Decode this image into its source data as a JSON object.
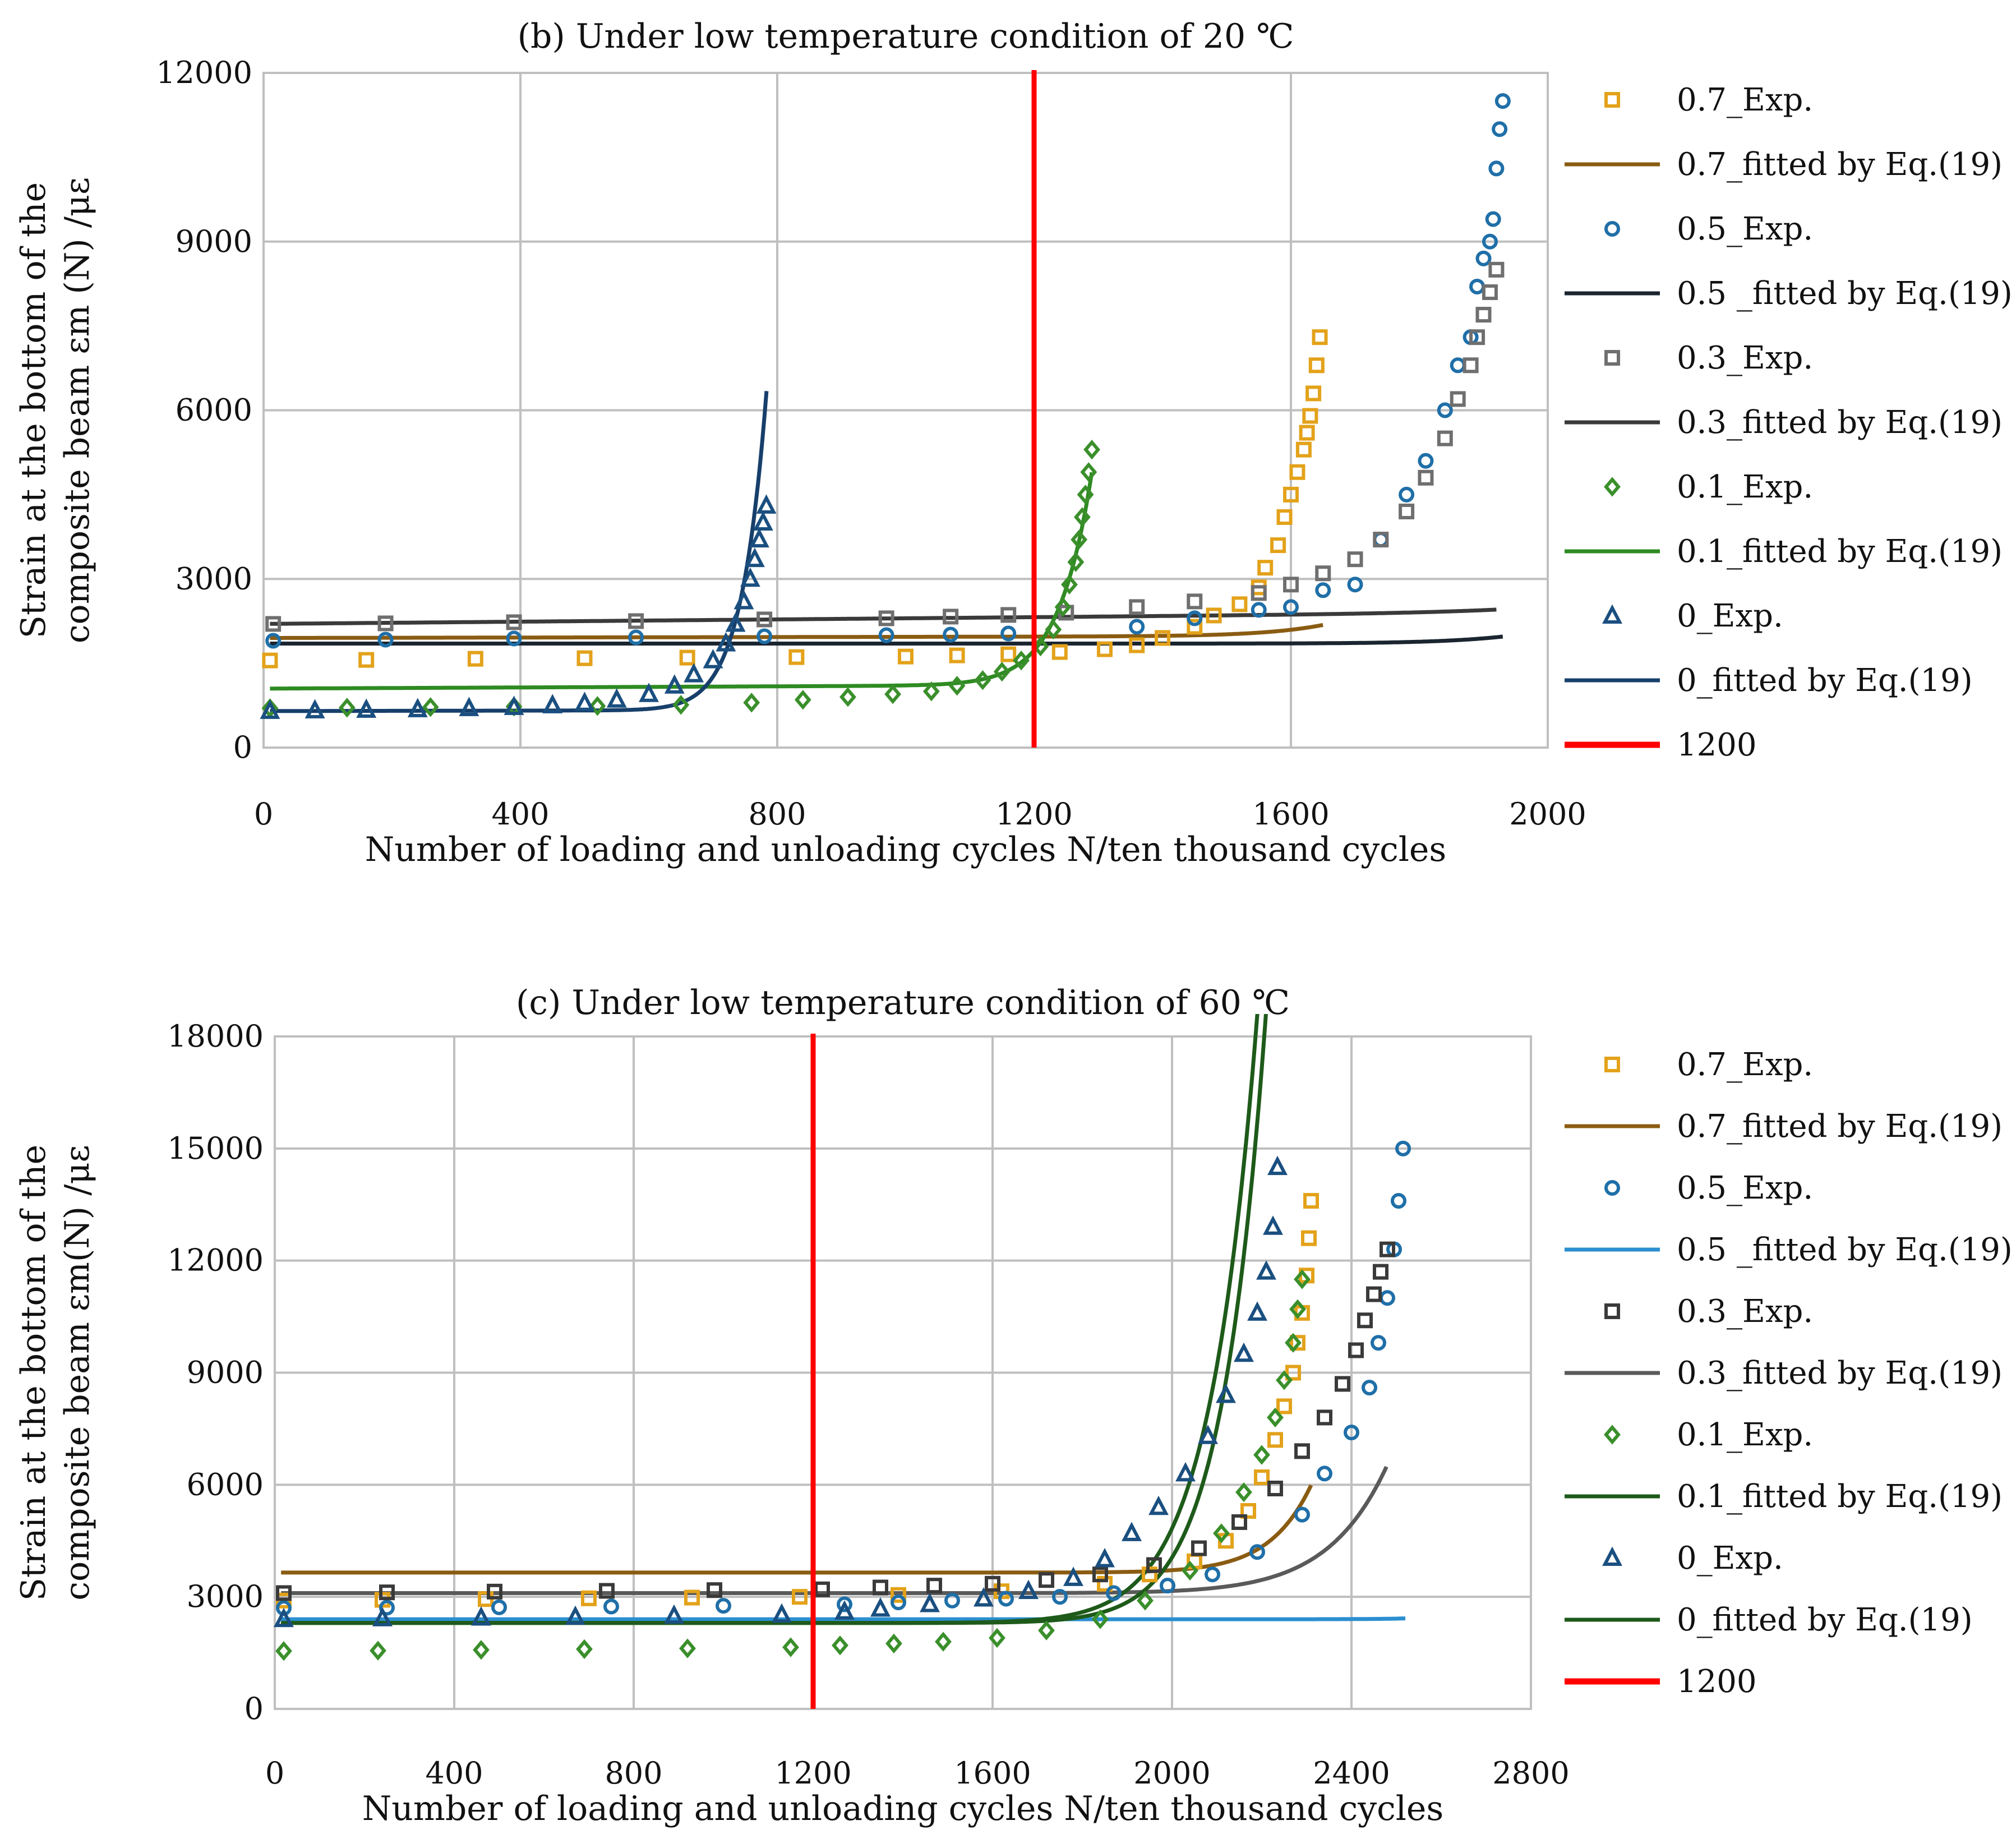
{
  "chart_data": [
    {
      "type": "scatter",
      "title": "(b) Under low temperature condition of 20 ℃",
      "xlabel": "Number of loading and unloading cycles N/ten thousand cycles",
      "ylabel_line1": "Strain at the bottom of the",
      "ylabel_line2": "composite beam εm (N) /με",
      "xlim": [
        0,
        2000
      ],
      "ylim": [
        0,
        12000
      ],
      "x_ticks": [
        "0",
        "400",
        "800",
        "1200",
        "1600",
        "2000"
      ],
      "y_ticks": [
        "0",
        "3000",
        "6000",
        "9000",
        "12000"
      ],
      "vline": {
        "x": 1200,
        "label": "1200",
        "color": "#ff0000"
      },
      "series": [
        {
          "name": "0.7_Exp.",
          "kind": "points",
          "marker": "square",
          "color": "#e3a21a",
          "x": [
            10,
            160,
            330,
            500,
            660,
            830,
            1000,
            1080,
            1160,
            1240,
            1310,
            1360,
            1400,
            1450,
            1480,
            1520,
            1550,
            1560,
            1580,
            1590,
            1600,
            1610,
            1620,
            1625,
            1630,
            1635,
            1640,
            1645
          ],
          "y": [
            1550,
            1560,
            1580,
            1590,
            1600,
            1610,
            1620,
            1640,
            1660,
            1700,
            1750,
            1820,
            1950,
            2150,
            2350,
            2550,
            2850,
            3200,
            3600,
            4100,
            4500,
            4900,
            5300,
            5600,
            5900,
            6300,
            6800,
            7300
          ]
        },
        {
          "name": "0.7_fitted by Eq.(19)",
          "kind": "line",
          "color": "#8a5c12",
          "fit": {
            "a": 1950,
            "b": 0.02,
            "c": 5.5e-57,
            "p": 18.2
          },
          "xmax": 1650
        },
        {
          "name": "0.5_Exp.",
          "kind": "points",
          "marker": "circle",
          "color": "#1f6fa8",
          "x": [
            15,
            190,
            390,
            580,
            780,
            970,
            1070,
            1160,
            1360,
            1450,
            1550,
            1600,
            1650,
            1700,
            1740,
            1780,
            1810,
            1840,
            1860,
            1880,
            1890,
            1900,
            1910,
            1915,
            1920,
            1925,
            1930
          ],
          "y": [
            1900,
            1920,
            1940,
            1960,
            1980,
            2000,
            2010,
            2030,
            2150,
            2300,
            2450,
            2500,
            2800,
            2900,
            3700,
            4500,
            5100,
            6000,
            6800,
            7300,
            8200,
            8700,
            9000,
            9400,
            10300,
            11000,
            11500
          ]
        },
        {
          "name": "0.5 _fitted by Eq.(19)",
          "kind": "line",
          "color": "#1a2530",
          "fit": {
            "a": 1850,
            "b": 0.0,
            "c": 1e-60,
            "p": 18.9
          },
          "xmax": 1930
        },
        {
          "name": "0.3_Exp.",
          "kind": "points",
          "marker": "square",
          "color": "#6f6f6f",
          "x": [
            15,
            190,
            390,
            580,
            780,
            970,
            1070,
            1160,
            1250,
            1360,
            1450,
            1550,
            1600,
            1650,
            1700,
            1740,
            1780,
            1810,
            1840,
            1860,
            1880,
            1890,
            1900,
            1910,
            1920
          ],
          "y": [
            2200,
            2210,
            2230,
            2250,
            2280,
            2300,
            2330,
            2360,
            2400,
            2500,
            2600,
            2750,
            2900,
            3100,
            3350,
            3700,
            4200,
            4800,
            5500,
            6200,
            6800,
            7300,
            7700,
            8100,
            8500
          ]
        },
        {
          "name": "0.3_fitted by Eq.(19)",
          "kind": "line",
          "color": "#3a3a3a",
          "fit": {
            "a": 2200,
            "b": 0.1,
            "c": 1.3e-41,
            "p": 13.0
          },
          "xmax": 1920
        },
        {
          "name": "0.1_Exp.",
          "kind": "points",
          "marker": "diamond",
          "color": "#3a8f2b",
          "x": [
            10,
            130,
            260,
            390,
            520,
            650,
            760,
            840,
            910,
            980,
            1040,
            1080,
            1120,
            1150,
            1180,
            1210,
            1230,
            1245,
            1255,
            1265,
            1270,
            1275,
            1280,
            1285,
            1290
          ],
          "y": [
            700,
            710,
            720,
            730,
            740,
            760,
            800,
            850,
            900,
            950,
            1000,
            1100,
            1200,
            1350,
            1550,
            1800,
            2100,
            2500,
            2900,
            3300,
            3700,
            4100,
            4500,
            4900,
            5300
          ]
        },
        {
          "name": "0.1_fitted by Eq.(19)",
          "kind": "line",
          "color": "#2e8b22",
          "fit": {
            "a": 1050,
            "b": 0.05,
            "c": 6.5e-75,
            "p": 25.0
          },
          "xmax": 1290
        },
        {
          "name": "0_Exp.",
          "kind": "points",
          "marker": "triangle",
          "color": "#1a4f80",
          "x": [
            10,
            80,
            160,
            240,
            320,
            390,
            450,
            500,
            550,
            600,
            640,
            670,
            700,
            720,
            735,
            748,
            758,
            765,
            772,
            778,
            783
          ],
          "y": [
            650,
            660,
            670,
            680,
            700,
            720,
            750,
            790,
            850,
            950,
            1100,
            1300,
            1550,
            1850,
            2200,
            2600,
            3000,
            3350,
            3700,
            4000,
            4300
          ]
        },
        {
          "name": "0_fitted by Eq.(19)",
          "kind": "line",
          "color": "#173f6b",
          "fit": {
            "a": 650,
            "b": 0.02,
            "c": 7.5e-55,
            "p": 20.0
          },
          "xmax": 785
        },
        {
          "name": "1200",
          "kind": "vline",
          "color": "#ff0000"
        }
      ]
    },
    {
      "type": "scatter",
      "title": "(c) Under low temperature condition of 60 ℃",
      "xlabel": "Number of loading and unloading cycles N/ten thousand cycles",
      "ylabel_line1": "Strain at the bottom of the",
      "ylabel_line2": "composite beam εm(N) /με",
      "xlim": [
        0,
        2800
      ],
      "ylim": [
        0,
        18000
      ],
      "x_ticks": [
        "0",
        "400",
        "800",
        "1200",
        "1600",
        "2000",
        "2400",
        "2800"
      ],
      "y_ticks": [
        "0",
        "3000",
        "6000",
        "9000",
        "12000",
        "15000",
        "18000"
      ],
      "vline": {
        "x": 1200,
        "label": "1200",
        "color": "#ff0000"
      },
      "series": [
        {
          "name": "0.7_Exp.",
          "kind": "points",
          "marker": "square",
          "color": "#e3a21a",
          "x": [
            20,
            240,
            470,
            700,
            930,
            1170,
            1390,
            1620,
            1850,
            1950,
            2050,
            2120,
            2170,
            2200,
            2230,
            2250,
            2270,
            2280,
            2290,
            2300,
            2305,
            2310
          ],
          "y": [
            2900,
            2920,
            2940,
            2960,
            2980,
            3000,
            3050,
            3150,
            3350,
            3600,
            3950,
            4500,
            5300,
            6200,
            7200,
            8100,
            9000,
            9800,
            10600,
            11600,
            12600,
            13600
          ]
        },
        {
          "name": "0.7_fitted by Eq.(19)",
          "kind": "line",
          "color": "#8a5c12",
          "fit": {
            "a": 3650,
            "b": 0.0,
            "c": 1.9e-81,
            "p": 25.0
          },
          "xmax": 2310
        },
        {
          "name": "0.5_Exp.",
          "kind": "points",
          "marker": "circle",
          "color": "#1f6fa8",
          "x": [
            20,
            250,
            500,
            750,
            1000,
            1270,
            1390,
            1510,
            1630,
            1750,
            1870,
            1990,
            2090,
            2190,
            2290,
            2340,
            2400,
            2440,
            2460,
            2480,
            2495,
            2505,
            2515
          ],
          "y": [
            2700,
            2710,
            2720,
            2740,
            2760,
            2800,
            2850,
            2900,
            2950,
            3000,
            3100,
            3300,
            3600,
            4200,
            5200,
            6300,
            7400,
            8600,
            9800,
            11000,
            12300,
            13600,
            15000
          ]
        },
        {
          "name": "0.5 _fitted by Eq.(19)",
          "kind": "line",
          "color": "#2b8fd0",
          "fit": {
            "a": 2400,
            "b": 0.0,
            "c": 2e-118,
            "p": 35.0
          },
          "xmax": 2520
        },
        {
          "name": "0.3_Exp.",
          "kind": "points",
          "marker": "square",
          "color": "#3a3a3a",
          "x": [
            20,
            250,
            490,
            740,
            980,
            1220,
            1350,
            1470,
            1600,
            1720,
            1840,
            1960,
            2060,
            2150,
            2230,
            2290,
            2340,
            2380,
            2410,
            2430,
            2450,
            2465,
            2480
          ],
          "y": [
            3100,
            3120,
            3140,
            3160,
            3180,
            3200,
            3250,
            3300,
            3350,
            3450,
            3600,
            3850,
            4300,
            5000,
            5900,
            6900,
            7800,
            8700,
            9600,
            10400,
            11100,
            11700,
            12300
          ]
        },
        {
          "name": "0.3_fitted by Eq.(19)",
          "kind": "line",
          "color": "#5a5a5a",
          "fit": {
            "a": 3100,
            "b": 0.0,
            "c": 1.1e-61,
            "p": 19.0
          },
          "xmax": 2480
        },
        {
          "name": "0.1_Exp.",
          "kind": "points",
          "marker": "diamond",
          "color": "#3a8f2b",
          "x": [
            20,
            230,
            460,
            690,
            920,
            1150,
            1260,
            1380,
            1490,
            1610,
            1720,
            1840,
            1940,
            2040,
            2110,
            2160,
            2200,
            2230,
            2250,
            2270,
            2280,
            2290
          ],
          "y": [
            1550,
            1560,
            1580,
            1600,
            1620,
            1650,
            1700,
            1750,
            1800,
            1900,
            2100,
            2400,
            2900,
            3700,
            4700,
            5800,
            6800,
            7800,
            8800,
            9800,
            10700,
            11500
          ]
        },
        {
          "name": "0.1_fitted by Eq.(19)",
          "kind": "line",
          "color": "#1e5a1a",
          "fit": {
            "a": 2300,
            "b": 0.0,
            "c": 2e-71,
            "p": 22.4
          },
          "xmax": 2285
        },
        {
          "name": "0_Exp.",
          "kind": "points",
          "marker": "triangle",
          "color": "#1a4f80",
          "x": [
            20,
            240,
            460,
            670,
            890,
            1130,
            1270,
            1350,
            1460,
            1580,
            1680,
            1780,
            1850,
            1910,
            1970,
            2030,
            2080,
            2120,
            2160,
            2190,
            2210,
            2225,
            2235
          ],
          "y": [
            2400,
            2420,
            2440,
            2460,
            2490,
            2520,
            2600,
            2680,
            2800,
            2950,
            3150,
            3500,
            4000,
            4700,
            5400,
            6300,
            7300,
            8400,
            9500,
            10600,
            11700,
            12900,
            14500
          ]
        },
        {
          "name": "0_fitted by Eq.(19)",
          "kind": "line",
          "color": "#1e5a1a",
          "fit": {
            "a": 2300,
            "b": 0.0,
            "c": 5.4e-65,
            "p": 20.5
          },
          "xmax": 2240
        },
        {
          "name": "1200",
          "kind": "vline",
          "color": "#ff0000"
        }
      ]
    }
  ]
}
